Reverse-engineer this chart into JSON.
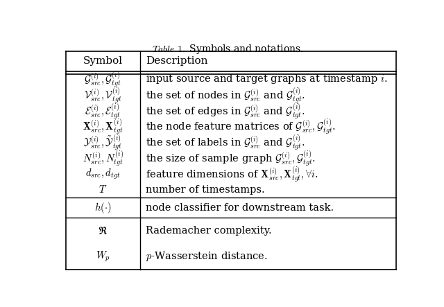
{
  "title_italic": "Table 1.",
  "title_rest": " Symbols and notations.",
  "col1_header": "Symbol",
  "col2_header": "Description",
  "bg_color": "#ffffff",
  "text_color": "#000000",
  "figsize": [
    6.4,
    4.43
  ],
  "dpi": 100,
  "group1_rows": [
    [
      "$\\mathcal{G}_{src}^{(i)}, \\mathcal{G}_{tgt}^{(i)}$",
      "input source and target graphs at timestamp $i$."
    ],
    [
      "$\\mathcal{V}_{src}^{(i)}, \\mathcal{V}_{tgt}^{(i)}$",
      "the set of nodes in $\\mathcal{G}_{src}^{(i)}$ and $\\mathcal{G}_{tgt}^{(i)}$."
    ],
    [
      "$\\mathcal{E}_{src}^{(i)}, \\mathcal{E}_{tgt}^{(i)}$",
      "the set of edges in $\\mathcal{G}_{src}^{(i)}$ and $\\mathcal{G}_{tgt}^{(i)}$."
    ],
    [
      "$\\mathbf{X}_{src}^{(i)}, \\mathbf{X}_{tgt}^{(i)}$",
      "the node feature matrices of $\\mathcal{G}_{src}^{(i)}, \\mathcal{G}_{tgt}^{(i)}$."
    ],
    [
      "$\\mathcal{Y}_{src}^{(i)}, \\tilde{\\mathcal{Y}}_{tgt}^{(i)}$",
      "the set of labels in $\\mathcal{G}_{src}^{(i)}$ and $\\mathcal{G}_{tgt}^{(i)}$."
    ],
    [
      "$N_{src}^{(i)}, N_{tgt}^{(i)}$",
      "the size of sample graph $\\mathcal{G}_{src}^{(i)}, \\mathcal{G}_{tgt}^{(i)}$."
    ],
    [
      "$d_{src}, d_{tgt}$",
      "feature dimensions of $\\mathbf{X}_{src}^{(i)}, \\mathbf{X}_{tgt}^{(i)}, \\forall i$."
    ],
    [
      "$T$",
      "number of timestamps."
    ]
  ],
  "hrow": [
    "$h(\\cdot)$",
    "node classifier for downstream task."
  ],
  "last_rows": [
    [
      "$\\mathfrak{R}$",
      "Rademacher complexity."
    ],
    [
      "$W_p$",
      "$p$-Wasserstein distance."
    ]
  ]
}
